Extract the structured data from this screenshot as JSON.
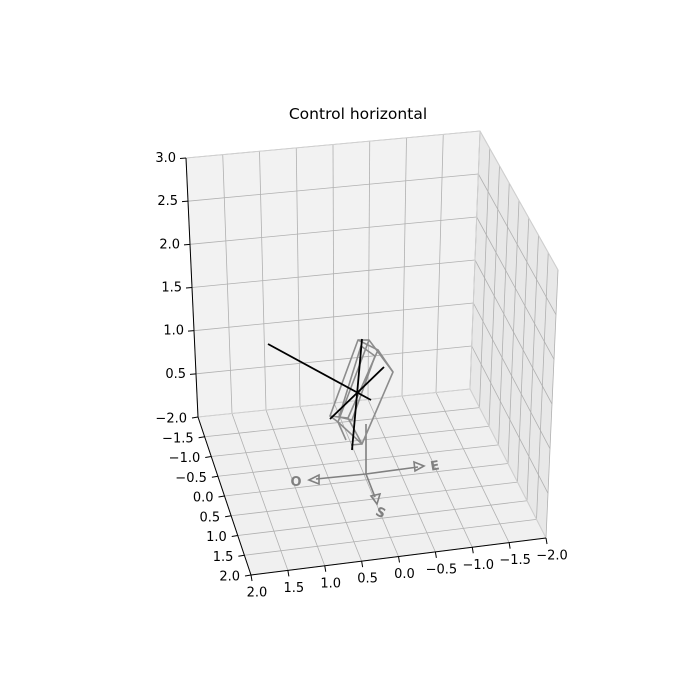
{
  "chart_data": {
    "type": "3d-line",
    "title": "Control horizontal",
    "xlabel": "",
    "ylabel": "",
    "zlabel": "",
    "x_ticks": [
      "−2.0",
      "−1.5",
      "−1.0",
      "−0.5",
      "0.0",
      "0.5",
      "1.0",
      "1.5",
      "2.0"
    ],
    "y_ticks": [
      "2.0",
      "1.5",
      "1.0",
      "0.5",
      "0.0",
      "−0.5",
      "−1.0",
      "−1.5",
      "−2.0"
    ],
    "z_ticks": [
      "0.5",
      "1.0",
      "1.5",
      "2.0",
      "2.5",
      "3.0"
    ],
    "xlim": [
      -2,
      2
    ],
    "ylim": [
      -2,
      2
    ],
    "zlim": [
      0,
      3
    ],
    "grid": true,
    "compass": {
      "labels": [
        "O",
        "E",
        "S"
      ],
      "color": "#808080"
    },
    "frame_color": "#808080",
    "vector_color": "#000000"
  }
}
